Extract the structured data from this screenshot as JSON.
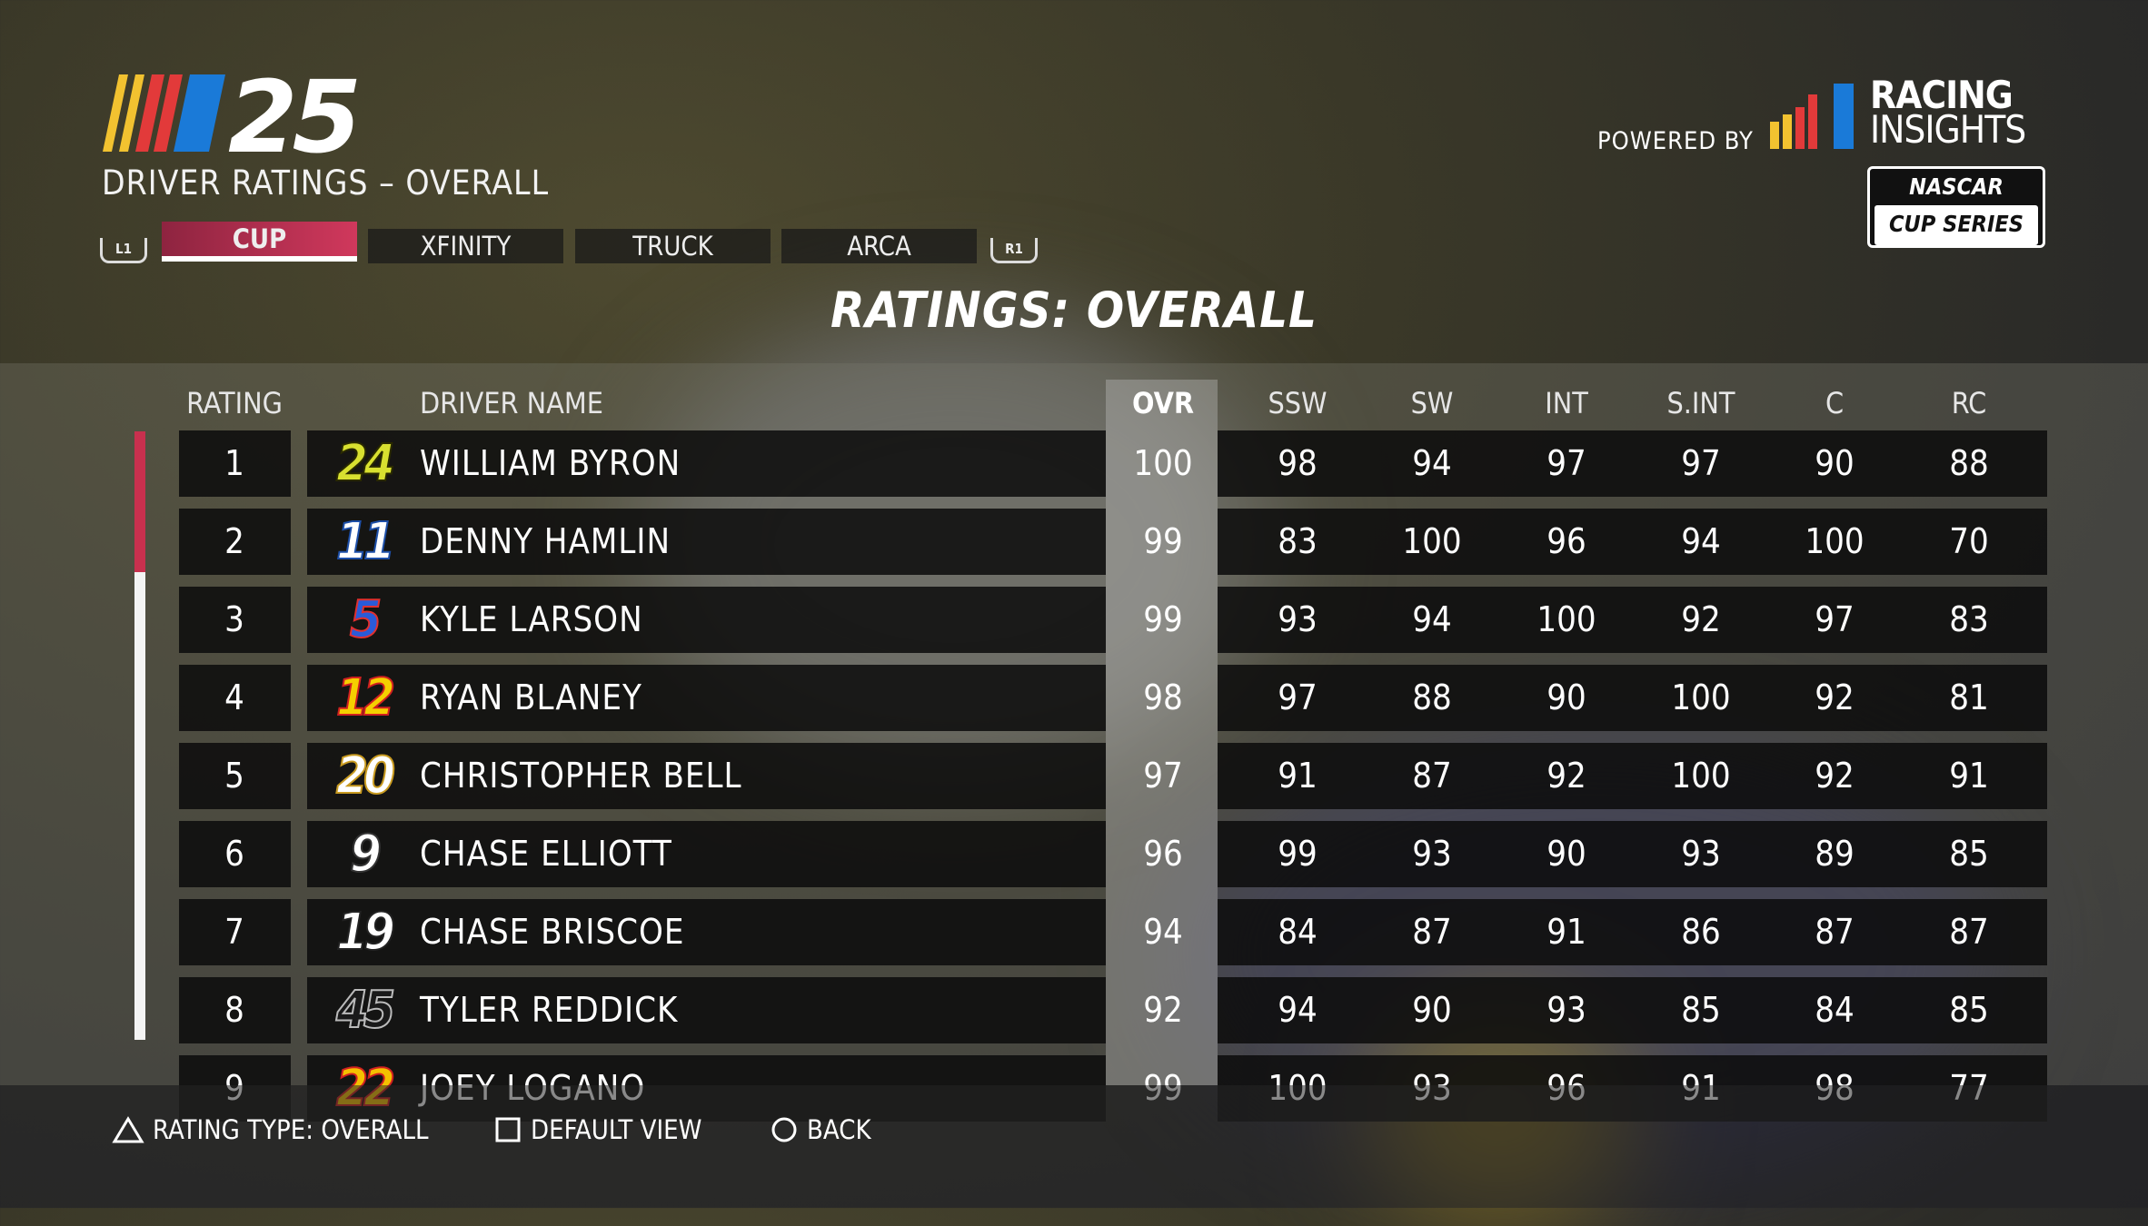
{
  "header": {
    "game_logo": "NASCAR 25",
    "subtitle": "DRIVER RATINGS –  OVERALL",
    "bumper_left": "L1",
    "bumper_right": "R1",
    "tabs": [
      {
        "label": "CUP",
        "active": true
      },
      {
        "label": "XFINITY"
      },
      {
        "label": "TRUCK"
      },
      {
        "label": "ARCA"
      }
    ],
    "powered_by": "POWERED BY",
    "sponsor_line1": "RACING",
    "sponsor_line2": "INSIGHTS",
    "series_badge_top": "NASCAR",
    "series_badge_bottom": "CUP SERIES"
  },
  "title": "RATINGS: OVERALL",
  "table": {
    "columns": [
      "RATING",
      "DRIVER NAME",
      "OVR",
      "SSW",
      "SW",
      "INT",
      "S.INT",
      "C",
      "RC"
    ],
    "rows": [
      {
        "rank": "1",
        "car": "24",
        "car_color": "#d8e030",
        "car_outline": "#2a2a00",
        "name": "WILLIAM BYRON",
        "v": [
          "100",
          "98",
          "94",
          "97",
          "97",
          "90",
          "88"
        ]
      },
      {
        "rank": "2",
        "car": "11",
        "car_color": "#ffffff",
        "car_outline": "#1d4fa8",
        "name": "DENNY HAMLIN",
        "v": [
          "99",
          "83",
          "100",
          "96",
          "94",
          "100",
          "70"
        ]
      },
      {
        "rank": "3",
        "car": "5",
        "car_color": "#2a5bd8",
        "car_outline": "#e03030",
        "name": "KYLE LARSON",
        "v": [
          "99",
          "93",
          "94",
          "100",
          "92",
          "97",
          "83"
        ]
      },
      {
        "rank": "4",
        "car": "12",
        "car_color": "#f5d000",
        "car_outline": "#d02020",
        "name": "RYAN BLANEY",
        "v": [
          "98",
          "97",
          "88",
          "90",
          "100",
          "92",
          "81"
        ]
      },
      {
        "rank": "5",
        "car": "20",
        "car_color": "#ffffff",
        "car_outline": "#c89a20",
        "name": "CHRISTOPHER BELL",
        "v": [
          "97",
          "91",
          "87",
          "92",
          "100",
          "92",
          "91"
        ]
      },
      {
        "rank": "6",
        "car": "9",
        "car_color": "#ffffff",
        "car_outline": "#333333",
        "name": "CHASE ELLIOTT",
        "v": [
          "96",
          "99",
          "93",
          "90",
          "93",
          "89",
          "85"
        ]
      },
      {
        "rank": "7",
        "car": "19",
        "car_color": "#ffffff",
        "car_outline": "#222222",
        "name": "CHASE BRISCOE",
        "v": [
          "94",
          "84",
          "87",
          "91",
          "86",
          "87",
          "87"
        ]
      },
      {
        "rank": "8",
        "car": "45",
        "car_color": "#1a1a1a",
        "car_outline": "#bbbbbb",
        "name": "TYLER REDDICK",
        "v": [
          "92",
          "94",
          "90",
          "93",
          "85",
          "84",
          "85"
        ]
      },
      {
        "rank": "9",
        "car": "22",
        "car_color": "#f5c000",
        "car_outline": "#d02020",
        "name": "JOEY LOGANO",
        "v": [
          "99",
          "100",
          "93",
          "96",
          "91",
          "98",
          "77"
        ]
      }
    ]
  },
  "scroll_position_percent": 0,
  "footer": {
    "rating_type": "RATING TYPE: OVERALL",
    "default_view": "DEFAULT VIEW",
    "back": "BACK"
  },
  "colors": {
    "accent": "#c8304e",
    "stripe_yellow": "#f2c230",
    "stripe_red": "#e23a3a",
    "stripe_blue": "#1a7ad8"
  }
}
